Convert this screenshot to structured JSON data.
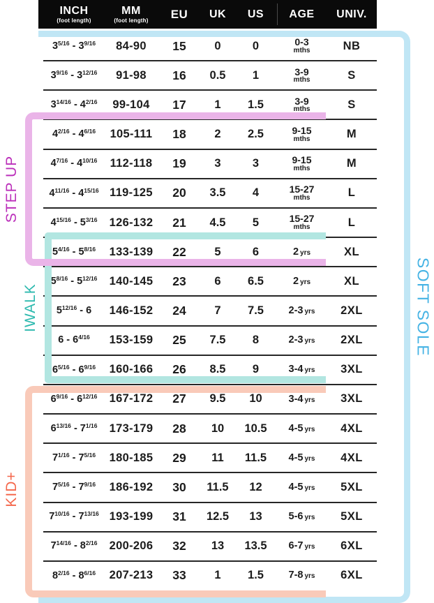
{
  "chart_data": {
    "type": "table",
    "columns": [
      {
        "key": "inch",
        "label": "INCH",
        "sub": "(foot length)"
      },
      {
        "key": "mm",
        "label": "MM",
        "sub": "(foot length)"
      },
      {
        "key": "eu",
        "label": "EU"
      },
      {
        "key": "uk",
        "label": "UK"
      },
      {
        "key": "us",
        "label": "US"
      },
      {
        "key": "age",
        "label": "AGE"
      },
      {
        "key": "univ",
        "label": "UNIV."
      }
    ],
    "rows": [
      [
        "3 5/16 - 3 9/16",
        "84-90",
        "15",
        "0",
        "0",
        "0-3 mths",
        "NB"
      ],
      [
        "3 9/16 - 3 12/16",
        "91-98",
        "16",
        "0.5",
        "1",
        "3-9 mths",
        "S"
      ],
      [
        "3 14/16 - 4 2/16",
        "99-104",
        "17",
        "1",
        "1.5",
        "3-9 mths",
        "S"
      ],
      [
        "4 2/16 - 4 6/16",
        "105-111",
        "18",
        "2",
        "2.5",
        "9-15 mths",
        "M"
      ],
      [
        "4 7/16 - 4 10/16",
        "112-118",
        "19",
        "3",
        "3",
        "9-15 mths",
        "M"
      ],
      [
        "4 11/16 - 4 15/16",
        "119-125",
        "20",
        "3.5",
        "4",
        "15-27 mths",
        "L"
      ],
      [
        "4 15/16 - 5 3/16",
        "126-132",
        "21",
        "4.5",
        "5",
        "15-27 mths",
        "L"
      ],
      [
        "5 4/16 - 5 8/16",
        "133-139",
        "22",
        "5",
        "6",
        "2 yrs",
        "XL"
      ],
      [
        "5 8/16 - 5 12/16",
        "140-145",
        "23",
        "6",
        "6.5",
        "2 yrs",
        "XL"
      ],
      [
        "5 12/16 - 6",
        "146-152",
        "24",
        "7",
        "7.5",
        "2-3 yrs",
        "2XL"
      ],
      [
        "6 - 6 4/16",
        "153-159",
        "25",
        "7.5",
        "8",
        "2-3 yrs",
        "2XL"
      ],
      [
        "6 5/16 - 6 9/16",
        "160-166",
        "26",
        "8.5",
        "9",
        "3-4 yrs",
        "3XL"
      ],
      [
        "6 9/16 - 6 12/16",
        "167-172",
        "27",
        "9.5",
        "10",
        "3-4 yrs",
        "3XL"
      ],
      [
        "6 13/16 - 7 1/16",
        "173-179",
        "28",
        "10",
        "10.5",
        "4-5 yrs",
        "4XL"
      ],
      [
        "7 1/16 - 7 5/16",
        "180-185",
        "29",
        "11",
        "11.5",
        "4-5 yrs",
        "4XL"
      ],
      [
        "7 5/16 - 7 9/16",
        "186-192",
        "30",
        "11.5",
        "12",
        "4-5 yrs",
        "5XL"
      ],
      [
        "7 10/16 - 7 13/16",
        "193-199",
        "31",
        "12.5",
        "13",
        "5-6 yrs",
        "5XL"
      ],
      [
        "7 14/16 - 8 2/16",
        "200-206",
        "32",
        "13",
        "13.5",
        "6-7 yrs",
        "6XL"
      ],
      [
        "8 2/16 - 8 6/16",
        "207-213",
        "33",
        "1",
        "1.5",
        "7-8 yrs",
        "6XL"
      ]
    ],
    "legend_position": "left-and-right-brackets",
    "grid": "horizontal-row-separators"
  },
  "brackets": {
    "step_up": {
      "label": "STEP UP",
      "text_color": "#bb2fba",
      "line_color": "#eab4e8",
      "covers_eu": "18-22"
    },
    "iwalk": {
      "label": "IWALK",
      "text_color": "#2cb9ae",
      "line_color": "#b2e6e1",
      "covers_eu": "22-26"
    },
    "kid_plus": {
      "label": "KID+",
      "text_color": "#f4664a",
      "line_color": "#f9cab9",
      "covers_eu": "27-33"
    },
    "soft_sole": {
      "label": "SOFT SOLE",
      "text_color": "#45b3e4",
      "line_color": "#c0e6f5",
      "covers_eu": "15-33"
    }
  },
  "header_colors": {
    "background": "#0a0a0a",
    "text": "#ffffff"
  }
}
